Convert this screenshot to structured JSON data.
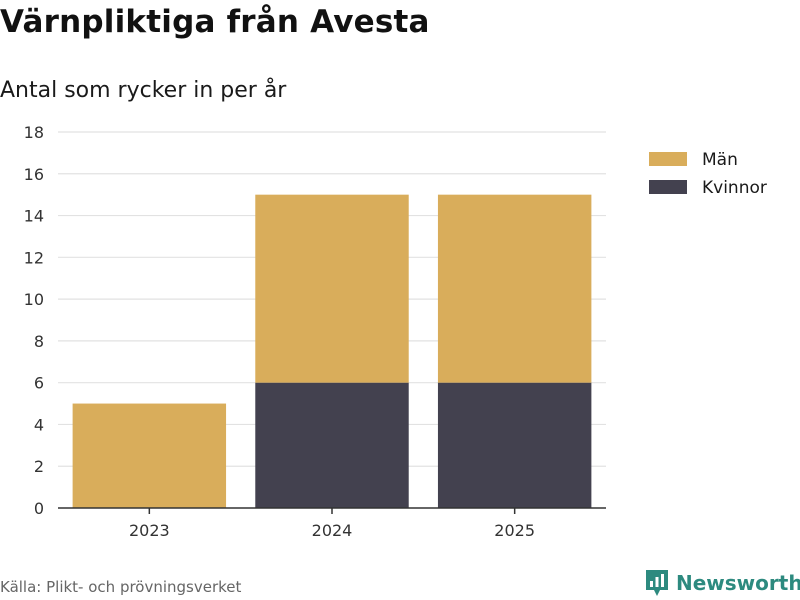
{
  "header": {
    "title": "Värnpliktiga från Avesta",
    "subtitle": "Antal som rycker in per år"
  },
  "chart_data": {
    "type": "bar",
    "stacked": true,
    "categories": [
      "2023",
      "2024",
      "2025"
    ],
    "series": [
      {
        "name": "Kvinnor",
        "values": [
          0,
          6,
          6
        ],
        "color": "#43414f"
      },
      {
        "name": "Män",
        "values": [
          5,
          9,
          9
        ],
        "color": "#d9ad5b"
      }
    ],
    "legend_order": [
      "Män",
      "Kvinnor"
    ],
    "legend_position": "right",
    "ylim": [
      0,
      18
    ],
    "yticks": [
      0,
      2,
      4,
      6,
      8,
      10,
      12,
      14,
      16,
      18
    ],
    "grid": true
  },
  "footer": {
    "source": "Källa: Plikt- och prövningsverket",
    "brand": "Newsworthy",
    "brand_color": "#2d8a7f"
  }
}
